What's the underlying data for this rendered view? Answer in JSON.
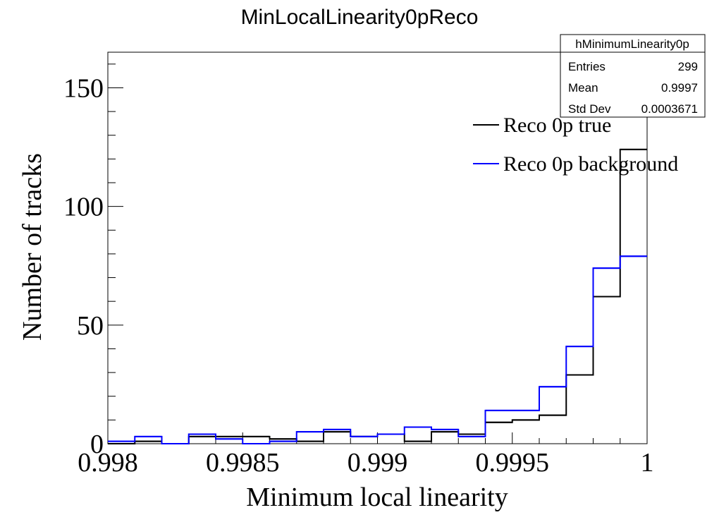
{
  "chart_data": {
    "type": "histogram",
    "title": "MinLocalLinearity0pReco",
    "xlabel": "Minimum local linearity",
    "ylabel": "Number of tracks",
    "xlim": [
      0.998,
      1.0
    ],
    "ylim": [
      0,
      165
    ],
    "x_ticks": [
      {
        "value": 0.998,
        "label": "0.998"
      },
      {
        "value": 0.9985,
        "label": "0.9985"
      },
      {
        "value": 0.999,
        "label": "0.999"
      },
      {
        "value": 0.9995,
        "label": "0.9995"
      },
      {
        "value": 1.0,
        "label": "1"
      }
    ],
    "y_ticks": [
      {
        "value": 0,
        "label": "0"
      },
      {
        "value": 50,
        "label": "50"
      },
      {
        "value": 100,
        "label": "100"
      },
      {
        "value": 150,
        "label": "150"
      }
    ],
    "bin_edges": [
      0.998,
      0.9981,
      0.9982,
      0.9983,
      0.9984,
      0.9985,
      0.9986,
      0.9987,
      0.9988,
      0.9989,
      0.999,
      0.9991,
      0.9992,
      0.9993,
      0.9994,
      0.9995,
      0.9996,
      0.9997,
      0.9998,
      0.9999,
      1.0
    ],
    "series": [
      {
        "name": "Reco 0p true",
        "color": "#000000",
        "values": [
          0,
          1,
          0,
          3,
          3,
          3,
          2,
          1,
          5,
          3,
          4,
          1,
          5,
          4,
          9,
          10,
          12,
          29,
          62,
          124
        ]
      },
      {
        "name": "Reco 0p background",
        "color": "#0000ff",
        "values": [
          1,
          3,
          0,
          4,
          2,
          0,
          1,
          5,
          6,
          3,
          4,
          7,
          6,
          3,
          14,
          14,
          24,
          41,
          74,
          79
        ]
      }
    ],
    "legend_position": "top-right",
    "grid": false,
    "stats_box": {
      "name": "hMinimumLinearity0p",
      "rows": [
        {
          "label": "Entries",
          "value": "299"
        },
        {
          "label": "Mean",
          "value": "0.9997"
        },
        {
          "label": "Std Dev",
          "value": "0.0003671"
        }
      ]
    }
  }
}
